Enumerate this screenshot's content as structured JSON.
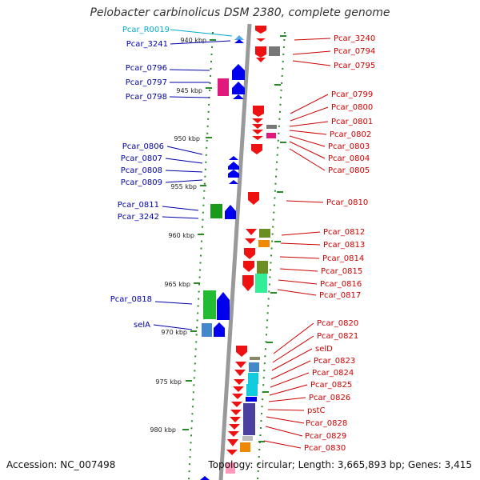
{
  "title": "Pelobacter carbinolicus DSM 2380, complete genome",
  "footer": {
    "accession": "Accession: NC_007498",
    "summary": "Topology: circular; Length: 3,665,893 bp; Genes: 3,415"
  },
  "colors": {
    "left_label": "#0000aa",
    "right_label": "#cc0000",
    "rna_label": "#00aacc",
    "backbone": "#888888",
    "tick_green": "#228822"
  },
  "kbp_ticks": [
    "940 kbp",
    "945 kbp",
    "950 kbp",
    "955 kbp",
    "960 kbp",
    "965 kbp",
    "970 kbp",
    "975 kbp",
    "980 kbp"
  ],
  "left_labels": [
    {
      "text": "Pcar_R0019",
      "kind": "rna"
    },
    {
      "text": "Pcar_3241"
    },
    {
      "text": "Pcar_0796"
    },
    {
      "text": "Pcar_0797"
    },
    {
      "text": "Pcar_0798"
    },
    {
      "text": "Pcar_0806"
    },
    {
      "text": "Pcar_0807"
    },
    {
      "text": "Pcar_0808"
    },
    {
      "text": "Pcar_0809"
    },
    {
      "text": "Pcar_0811"
    },
    {
      "text": "Pcar_3242"
    },
    {
      "text": "Pcar_0818"
    },
    {
      "text": "selA"
    }
  ],
  "right_labels": [
    {
      "text": "Pcar_3240"
    },
    {
      "text": "Pcar_0794"
    },
    {
      "text": "Pcar_0795"
    },
    {
      "text": "Pcar_0799"
    },
    {
      "text": "Pcar_0800"
    },
    {
      "text": "Pcar_0801"
    },
    {
      "text": "Pcar_0802"
    },
    {
      "text": "Pcar_0803"
    },
    {
      "text": "Pcar_0804"
    },
    {
      "text": "Pcar_0805"
    },
    {
      "text": "Pcar_0810"
    },
    {
      "text": "Pcar_0812"
    },
    {
      "text": "Pcar_0813"
    },
    {
      "text": "Pcar_0814"
    },
    {
      "text": "Pcar_0815"
    },
    {
      "text": "Pcar_0816"
    },
    {
      "text": "Pcar_0817"
    },
    {
      "text": "Pcar_0820"
    },
    {
      "text": "Pcar_0821"
    },
    {
      "text": "selD"
    },
    {
      "text": "Pcar_0823"
    },
    {
      "text": "Pcar_0824"
    },
    {
      "text": "Pcar_0825"
    },
    {
      "text": "Pcar_0826"
    },
    {
      "text": "pstC"
    },
    {
      "text": "Pcar_0828"
    },
    {
      "text": "Pcar_0829"
    },
    {
      "text": "Pcar_0830"
    }
  ]
}
